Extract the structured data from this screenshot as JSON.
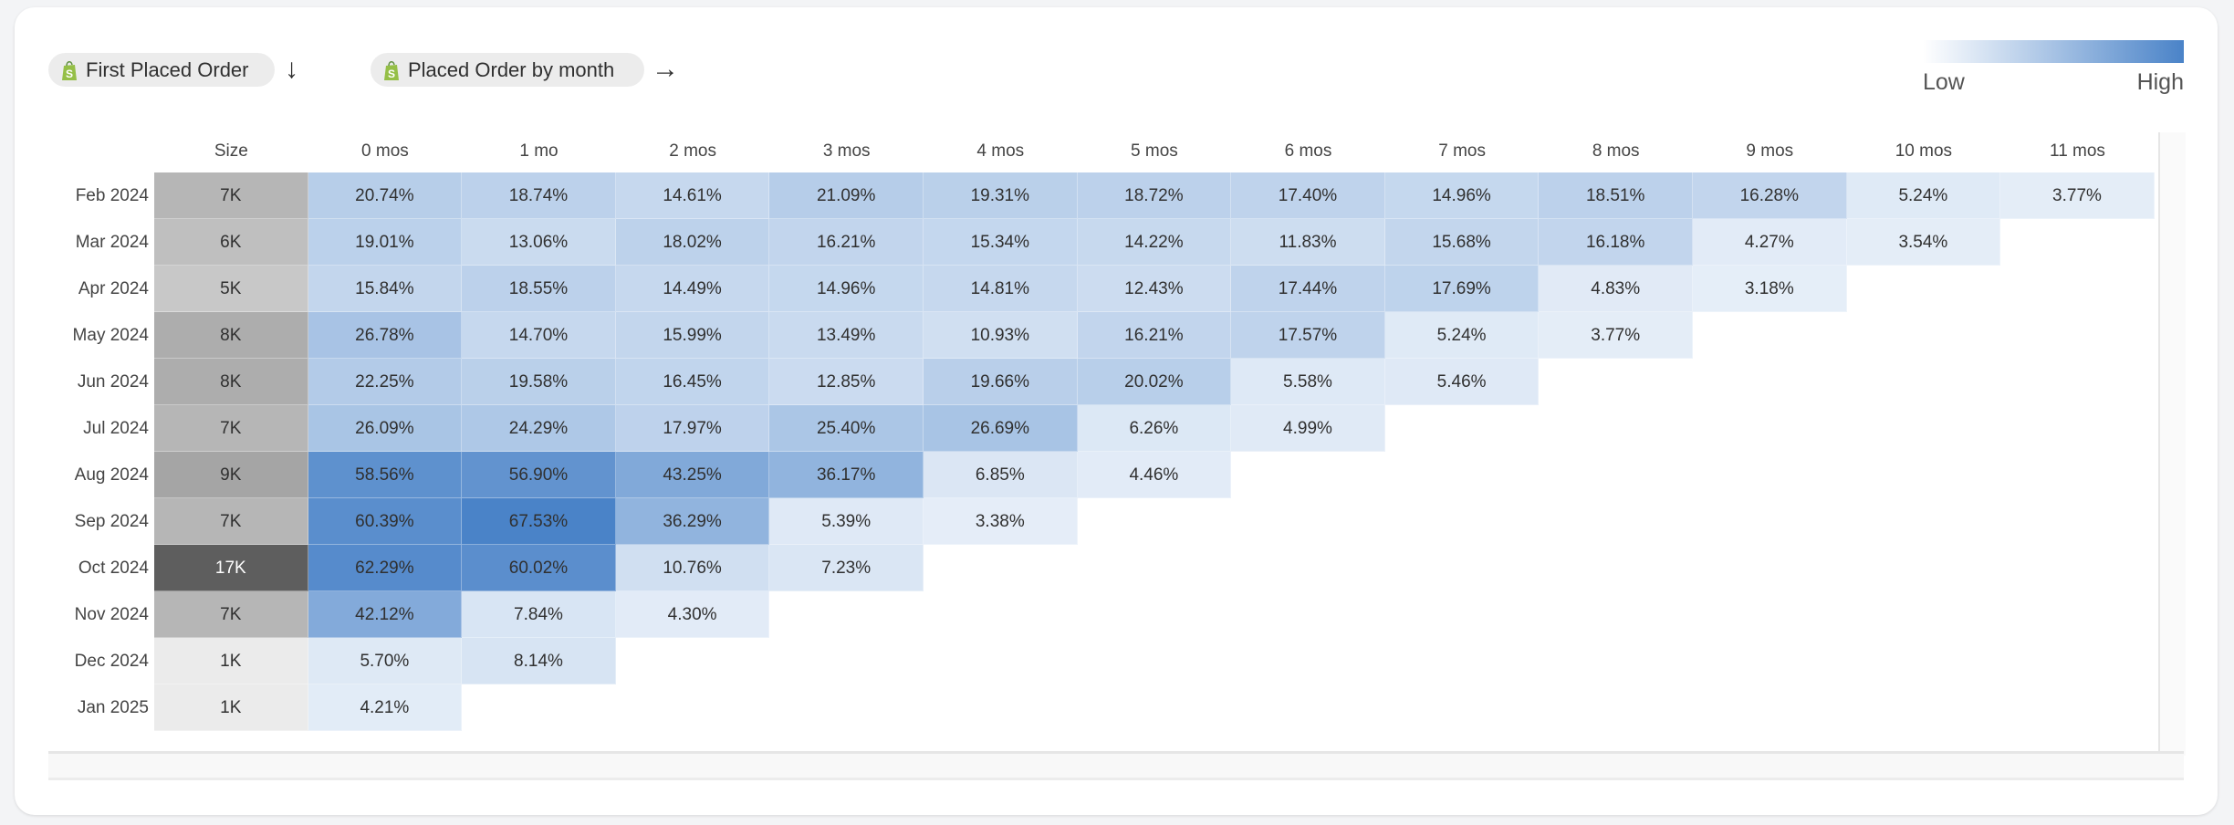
{
  "header": {
    "row_dimension": {
      "label": "First Placed Order",
      "icon": "shopify-bag-icon",
      "direction_icon": "arrow-down-icon"
    },
    "column_dimension": {
      "label": "Placed Order by month",
      "icon": "shopify-bag-icon",
      "direction_icon": "arrow-right-icon"
    }
  },
  "legend": {
    "low": "Low",
    "high": "High",
    "low_color": "#ffffff",
    "high_color": "#4a83c8"
  },
  "chart_data": {
    "type": "heatmap",
    "size_header": "Size",
    "columns": [
      "0 mos",
      "1 mo",
      "2 mos",
      "3 mos",
      "4 mos",
      "5 mos",
      "6 mos",
      "7 mos",
      "8 mos",
      "9 mos",
      "10 mos",
      "11 mos"
    ],
    "rows": [
      {
        "label": "Feb 2024",
        "size": "7K",
        "values": [
          "20.74%",
          "18.74%",
          "14.61%",
          "21.09%",
          "19.31%",
          "18.72%",
          "17.40%",
          "14.96%",
          "18.51%",
          "16.28%",
          "5.24%",
          "3.77%"
        ]
      },
      {
        "label": "Mar 2024",
        "size": "6K",
        "values": [
          "19.01%",
          "13.06%",
          "18.02%",
          "16.21%",
          "15.34%",
          "14.22%",
          "11.83%",
          "15.68%",
          "16.18%",
          "4.27%",
          "3.54%"
        ]
      },
      {
        "label": "Apr 2024",
        "size": "5K",
        "values": [
          "15.84%",
          "18.55%",
          "14.49%",
          "14.96%",
          "14.81%",
          "12.43%",
          "17.44%",
          "17.69%",
          "4.83%",
          "3.18%"
        ]
      },
      {
        "label": "May 2024",
        "size": "8K",
        "values": [
          "26.78%",
          "14.70%",
          "15.99%",
          "13.49%",
          "10.93%",
          "16.21%",
          "17.57%",
          "5.24%",
          "3.77%"
        ]
      },
      {
        "label": "Jun 2024",
        "size": "8K",
        "values": [
          "22.25%",
          "19.58%",
          "16.45%",
          "12.85%",
          "19.66%",
          "20.02%",
          "5.58%",
          "5.46%"
        ]
      },
      {
        "label": "Jul 2024",
        "size": "7K",
        "values": [
          "26.09%",
          "24.29%",
          "17.97%",
          "25.40%",
          "26.69%",
          "6.26%",
          "4.99%"
        ]
      },
      {
        "label": "Aug 2024",
        "size": "9K",
        "values": [
          "58.56%",
          "56.90%",
          "43.25%",
          "36.17%",
          "6.85%",
          "4.46%"
        ]
      },
      {
        "label": "Sep 2024",
        "size": "7K",
        "values": [
          "60.39%",
          "67.53%",
          "36.29%",
          "5.39%",
          "3.38%"
        ]
      },
      {
        "label": "Oct 2024",
        "size": "17K",
        "values": [
          "62.29%",
          "60.02%",
          "10.76%",
          "7.23%"
        ]
      },
      {
        "label": "Nov 2024",
        "size": "7K",
        "values": [
          "42.12%",
          "7.84%",
          "4.30%"
        ]
      },
      {
        "label": "Dec 2024",
        "size": "1K",
        "values": [
          "5.70%",
          "8.14%"
        ]
      },
      {
        "label": "Jan 2025",
        "size": "1K",
        "values": [
          "4.21%"
        ]
      }
    ]
  }
}
